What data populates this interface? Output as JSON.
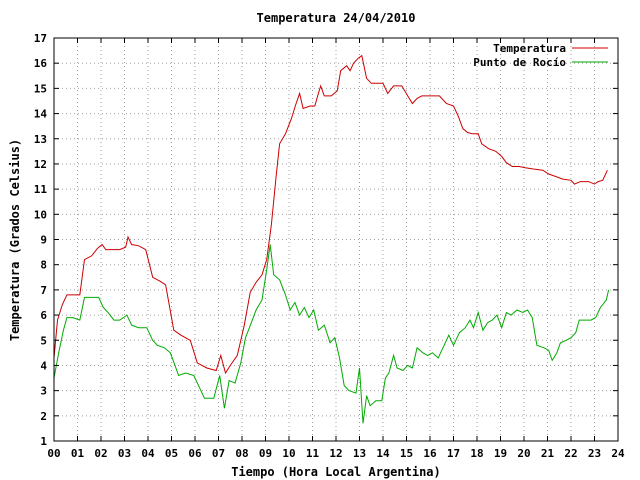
{
  "chart_data": {
    "type": "line",
    "title": "Temperatura 24/04/2010",
    "xlabel": "Tiempo (Hora Local Argentina)",
    "ylabel": "Temperatura (Grados Celsius)",
    "xlim": [
      0,
      24
    ],
    "ylim": [
      1,
      17
    ],
    "x_ticks": [
      "00",
      "01",
      "02",
      "03",
      "04",
      "05",
      "06",
      "07",
      "08",
      "09",
      "10",
      "11",
      "12",
      "13",
      "14",
      "15",
      "16",
      "17",
      "18",
      "19",
      "20",
      "21",
      "22",
      "23",
      "24"
    ],
    "y_ticks": [
      1,
      2,
      3,
      4,
      5,
      6,
      7,
      8,
      9,
      10,
      11,
      12,
      13,
      14,
      15,
      16,
      17
    ],
    "grid": true,
    "legend_position": "top-right",
    "series": [
      {
        "name": "Temperatura",
        "color": "#cc0000",
        "points": [
          [
            0.0,
            4.3
          ],
          [
            0.15,
            5.8
          ],
          [
            0.35,
            6.4
          ],
          [
            0.55,
            6.8
          ],
          [
            0.8,
            6.8
          ],
          [
            1.1,
            6.8
          ],
          [
            1.3,
            8.2
          ],
          [
            1.6,
            8.35
          ],
          [
            1.85,
            8.65
          ],
          [
            2.05,
            8.8
          ],
          [
            2.2,
            8.6
          ],
          [
            2.5,
            8.6
          ],
          [
            2.8,
            8.6
          ],
          [
            3.05,
            8.7
          ],
          [
            3.15,
            9.1
          ],
          [
            3.3,
            8.8
          ],
          [
            3.6,
            8.75
          ],
          [
            3.9,
            8.6
          ],
          [
            4.2,
            7.5
          ],
          [
            4.5,
            7.35
          ],
          [
            4.75,
            7.2
          ],
          [
            5.1,
            5.4
          ],
          [
            5.4,
            5.2
          ],
          [
            5.8,
            5.0
          ],
          [
            6.1,
            4.1
          ],
          [
            6.5,
            3.9
          ],
          [
            6.9,
            3.8
          ],
          [
            7.1,
            4.4
          ],
          [
            7.3,
            3.7
          ],
          [
            7.5,
            4.0
          ],
          [
            7.8,
            4.4
          ],
          [
            8.1,
            5.6
          ],
          [
            8.35,
            6.9
          ],
          [
            8.6,
            7.3
          ],
          [
            8.85,
            7.6
          ],
          [
            9.05,
            8.2
          ],
          [
            9.25,
            9.6
          ],
          [
            9.45,
            11.5
          ],
          [
            9.6,
            12.8
          ],
          [
            9.85,
            13.2
          ],
          [
            10.1,
            13.8
          ],
          [
            10.3,
            14.4
          ],
          [
            10.45,
            14.8
          ],
          [
            10.6,
            14.2
          ],
          [
            10.9,
            14.3
          ],
          [
            11.1,
            14.3
          ],
          [
            11.25,
            14.8
          ],
          [
            11.35,
            15.1
          ],
          [
            11.5,
            14.7
          ],
          [
            11.8,
            14.7
          ],
          [
            12.05,
            14.9
          ],
          [
            12.2,
            15.7
          ],
          [
            12.45,
            15.9
          ],
          [
            12.6,
            15.7
          ],
          [
            12.75,
            16.0
          ],
          [
            12.95,
            16.2
          ],
          [
            13.1,
            16.3
          ],
          [
            13.3,
            15.4
          ],
          [
            13.5,
            15.2
          ],
          [
            13.75,
            15.2
          ],
          [
            14.0,
            15.2
          ],
          [
            14.2,
            14.8
          ],
          [
            14.45,
            15.1
          ],
          [
            14.8,
            15.1
          ],
          [
            15.05,
            14.7
          ],
          [
            15.25,
            14.4
          ],
          [
            15.45,
            14.6
          ],
          [
            15.65,
            14.7
          ],
          [
            16.0,
            14.7
          ],
          [
            16.4,
            14.7
          ],
          [
            16.7,
            14.4
          ],
          [
            17.0,
            14.3
          ],
          [
            17.2,
            13.9
          ],
          [
            17.4,
            13.4
          ],
          [
            17.6,
            13.25
          ],
          [
            17.8,
            13.2
          ],
          [
            18.05,
            13.2
          ],
          [
            18.2,
            12.8
          ],
          [
            18.5,
            12.6
          ],
          [
            18.8,
            12.5
          ],
          [
            19.05,
            12.3
          ],
          [
            19.25,
            12.05
          ],
          [
            19.5,
            11.9
          ],
          [
            19.8,
            11.9
          ],
          [
            20.05,
            11.85
          ],
          [
            20.4,
            11.8
          ],
          [
            20.8,
            11.75
          ],
          [
            21.05,
            11.6
          ],
          [
            21.35,
            11.5
          ],
          [
            21.65,
            11.4
          ],
          [
            22.0,
            11.35
          ],
          [
            22.15,
            11.2
          ],
          [
            22.4,
            11.3
          ],
          [
            22.75,
            11.3
          ],
          [
            23.0,
            11.2
          ],
          [
            23.15,
            11.3
          ],
          [
            23.35,
            11.35
          ],
          [
            23.55,
            11.75
          ]
        ]
      },
      {
        "name": "Punto de Rocío",
        "color": "#00aa00",
        "points": [
          [
            0.0,
            3.5
          ],
          [
            0.2,
            4.5
          ],
          [
            0.4,
            5.4
          ],
          [
            0.55,
            5.9
          ],
          [
            0.8,
            5.9
          ],
          [
            1.1,
            5.8
          ],
          [
            1.3,
            6.7
          ],
          [
            1.6,
            6.7
          ],
          [
            1.9,
            6.7
          ],
          [
            2.1,
            6.3
          ],
          [
            2.3,
            6.1
          ],
          [
            2.55,
            5.8
          ],
          [
            2.8,
            5.8
          ],
          [
            3.1,
            6.0
          ],
          [
            3.3,
            5.6
          ],
          [
            3.6,
            5.5
          ],
          [
            3.95,
            5.5
          ],
          [
            4.2,
            5.0
          ],
          [
            4.4,
            4.8
          ],
          [
            4.7,
            4.7
          ],
          [
            4.95,
            4.5
          ],
          [
            5.15,
            4.0
          ],
          [
            5.3,
            3.6
          ],
          [
            5.6,
            3.7
          ],
          [
            5.95,
            3.6
          ],
          [
            6.2,
            3.1
          ],
          [
            6.4,
            2.7
          ],
          [
            6.8,
            2.7
          ],
          [
            7.05,
            3.6
          ],
          [
            7.25,
            2.3
          ],
          [
            7.45,
            3.4
          ],
          [
            7.7,
            3.3
          ],
          [
            7.95,
            4.1
          ],
          [
            8.15,
            5.1
          ],
          [
            8.4,
            5.7
          ],
          [
            8.6,
            6.2
          ],
          [
            8.85,
            6.6
          ],
          [
            9.05,
            7.8
          ],
          [
            9.2,
            8.8
          ],
          [
            9.35,
            7.6
          ],
          [
            9.6,
            7.4
          ],
          [
            9.85,
            6.8
          ],
          [
            10.05,
            6.2
          ],
          [
            10.25,
            6.5
          ],
          [
            10.45,
            6.0
          ],
          [
            10.65,
            6.3
          ],
          [
            10.85,
            5.9
          ],
          [
            11.05,
            6.2
          ],
          [
            11.25,
            5.4
          ],
          [
            11.5,
            5.6
          ],
          [
            11.75,
            4.9
          ],
          [
            11.95,
            5.1
          ],
          [
            12.15,
            4.3
          ],
          [
            12.35,
            3.2
          ],
          [
            12.55,
            3.0
          ],
          [
            12.85,
            2.9
          ],
          [
            13.0,
            3.9
          ],
          [
            13.15,
            1.7
          ],
          [
            13.3,
            2.8
          ],
          [
            13.45,
            2.4
          ],
          [
            13.7,
            2.6
          ],
          [
            13.95,
            2.6
          ],
          [
            14.1,
            3.5
          ],
          [
            14.25,
            3.7
          ],
          [
            14.45,
            4.4
          ],
          [
            14.6,
            3.9
          ],
          [
            14.85,
            3.8
          ],
          [
            15.05,
            4.0
          ],
          [
            15.25,
            3.9
          ],
          [
            15.45,
            4.7
          ],
          [
            15.7,
            4.5
          ],
          [
            15.9,
            4.4
          ],
          [
            16.1,
            4.5
          ],
          [
            16.35,
            4.3
          ],
          [
            16.6,
            4.8
          ],
          [
            16.8,
            5.2
          ],
          [
            17.0,
            4.8
          ],
          [
            17.25,
            5.3
          ],
          [
            17.5,
            5.5
          ],
          [
            17.7,
            5.8
          ],
          [
            17.85,
            5.5
          ],
          [
            18.05,
            6.1
          ],
          [
            18.25,
            5.4
          ],
          [
            18.45,
            5.7
          ],
          [
            18.65,
            5.8
          ],
          [
            18.85,
            6.0
          ],
          [
            19.05,
            5.5
          ],
          [
            19.25,
            6.1
          ],
          [
            19.45,
            6.0
          ],
          [
            19.7,
            6.2
          ],
          [
            19.95,
            6.1
          ],
          [
            20.15,
            6.2
          ],
          [
            20.35,
            5.9
          ],
          [
            20.55,
            4.8
          ],
          [
            20.85,
            4.7
          ],
          [
            21.05,
            4.6
          ],
          [
            21.2,
            4.2
          ],
          [
            21.4,
            4.5
          ],
          [
            21.55,
            4.9
          ],
          [
            21.8,
            5.0
          ],
          [
            22.0,
            5.1
          ],
          [
            22.2,
            5.3
          ],
          [
            22.35,
            5.8
          ],
          [
            22.55,
            5.8
          ],
          [
            22.85,
            5.8
          ],
          [
            23.05,
            5.9
          ],
          [
            23.25,
            6.3
          ],
          [
            23.5,
            6.6
          ],
          [
            23.6,
            7.0
          ]
        ]
      }
    ]
  }
}
